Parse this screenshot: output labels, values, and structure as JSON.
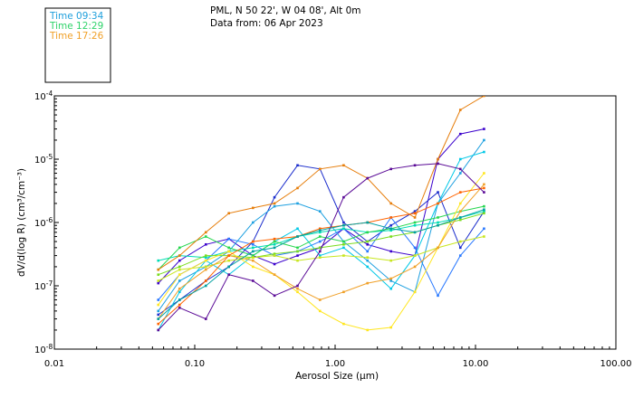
{
  "chart_data": {
    "type": "line",
    "title": "PML, N 50 22', W 04 08', Alt 0m",
    "subtitle": "Data from: 06 Apr 2023",
    "xlabel": "Aerosol Size (µm)",
    "ylabel": "dV/d(log R) (cm³/cm⁻³)",
    "x_scale": "log",
    "y_scale": "log",
    "xlim": [
      0.01,
      100
    ],
    "ylim": [
      1e-08,
      0.0001
    ],
    "x_ticks": [
      {
        "value": 0.01,
        "label": "0.01"
      },
      {
        "value": 0.1,
        "label": "0.10"
      },
      {
        "value": 1,
        "label": "1.00"
      },
      {
        "value": 10,
        "label": "10.00"
      },
      {
        "value": 100,
        "label": "100.00"
      }
    ],
    "y_ticks": [
      {
        "value": 1e-08,
        "mant": "10",
        "exp": "-8"
      },
      {
        "value": 1e-07,
        "mant": "10",
        "exp": "-7"
      },
      {
        "value": 1e-06,
        "mant": "10",
        "exp": "-6"
      },
      {
        "value": 1e-05,
        "mant": "10",
        "exp": "-5"
      },
      {
        "value": 0.0001,
        "mant": "10",
        "exp": "-4"
      }
    ],
    "legend_position": "top-left (outside plot)",
    "legend": [
      {
        "label": "Time 09:34",
        "color": "#1e9fdc"
      },
      {
        "label": "Time 12:29",
        "color": "#2fd36a"
      },
      {
        "label": "Time 17:26",
        "color": "#f0a028"
      }
    ],
    "x": [
      0.055,
      0.078,
      0.12,
      0.175,
      0.26,
      0.37,
      0.54,
      0.78,
      1.15,
      1.7,
      2.5,
      3.7,
      5.4,
      7.8,
      11.5
    ],
    "series": [
      {
        "color": "#3a00cc",
        "values": [
          1.1e-07,
          2.5e-07,
          4.5e-07,
          5.5e-07,
          3e-07,
          2.2e-07,
          3e-07,
          4e-07,
          8e-07,
          4.5e-07,
          3.5e-07,
          3e-07,
          1e-05,
          2.5e-05,
          3e-05
        ]
      },
      {
        "color": "#1a2ccc",
        "values": [
          3.5e-08,
          6e-08,
          1.2e-07,
          2e-07,
          5e-07,
          2.5e-06,
          8e-06,
          7e-06,
          1e-06,
          5e-07,
          9e-07,
          1.5e-06,
          3e-06,
          4e-07,
          1.5e-06
        ]
      },
      {
        "color": "#2878ff",
        "values": [
          6e-08,
          1.5e-07,
          2.5e-07,
          5.5e-07,
          4.5e-07,
          3e-07,
          3.5e-07,
          5e-07,
          8e-07,
          3.5e-07,
          1.2e-06,
          4e-07,
          7e-08,
          3e-07,
          8e-07
        ]
      },
      {
        "color": "#1ea0e0",
        "values": [
          4e-08,
          1.2e-07,
          2e-07,
          3.5e-07,
          1e-06,
          1.8e-06,
          2e-06,
          1.5e-06,
          5e-07,
          2.5e-07,
          1.2e-07,
          8e-08,
          2e-06,
          6e-06,
          2e-05
        ]
      },
      {
        "color": "#00c8e6",
        "values": [
          2e-08,
          8e-08,
          2.5e-07,
          1.5e-07,
          3e-07,
          5e-07,
          8e-07,
          3e-07,
          4e-07,
          2e-07,
          9e-08,
          3e-07,
          2e-06,
          1e-05,
          1.3e-05
        ]
      },
      {
        "color": "#00dcb4",
        "values": [
          2.5e-07,
          3e-07,
          2.8e-07,
          3.5e-07,
          4e-07,
          4.5e-07,
          6e-07,
          7e-07,
          8e-07,
          7e-07,
          7.5e-07,
          9e-07,
          1e-06,
          1.2e-06,
          1.5e-06
        ]
      },
      {
        "color": "#26d74e",
        "values": [
          1.8e-07,
          4e-07,
          6e-07,
          4e-07,
          3e-07,
          5e-07,
          4e-07,
          6e-07,
          5e-07,
          7e-07,
          8e-07,
          1e-06,
          1.2e-06,
          1.5e-06,
          1.8e-06
        ]
      },
      {
        "color": "#7adc1e",
        "values": [
          1.5e-07,
          2e-07,
          3e-07,
          3e-07,
          2.8e-07,
          3.2e-07,
          3.5e-07,
          4e-07,
          4.5e-07,
          5e-07,
          6e-07,
          7e-07,
          9e-07,
          1.1e-06,
          1.4e-06
        ]
      },
      {
        "color": "#c8e61e",
        "values": [
          1.2e-07,
          1.8e-07,
          2e-07,
          2.5e-07,
          2.8e-07,
          3e-07,
          2.5e-07,
          2.8e-07,
          3e-07,
          2.8e-07,
          2.5e-07,
          3e-07,
          4e-07,
          5e-07,
          6e-07
        ]
      },
      {
        "color": "#ffe61e",
        "values": [
          5e-08,
          1.5e-07,
          2.5e-07,
          3.5e-07,
          2e-07,
          1.5e-07,
          8e-08,
          4e-08,
          2.5e-08,
          2e-08,
          2.2e-08,
          8e-08,
          4e-07,
          2e-06,
          6e-06
        ]
      },
      {
        "color": "#f0a028",
        "values": [
          3e-08,
          9e-08,
          1.8e-07,
          3e-07,
          2.5e-07,
          1.5e-07,
          9e-08,
          6e-08,
          8e-08,
          1.1e-07,
          1.3e-07,
          2e-07,
          4e-07,
          1.5e-06,
          4e-06
        ]
      },
      {
        "color": "#e67d0a",
        "values": [
          1.8e-07,
          3e-07,
          7e-07,
          1.4e-06,
          1.7e-06,
          2e-06,
          3.5e-06,
          7e-06,
          8e-06,
          5e-06,
          2e-06,
          1.2e-06,
          1e-05,
          6e-05,
          0.0001
        ]
      },
      {
        "color": "#ff6400",
        "values": [
          2.5e-08,
          5e-08,
          1.2e-07,
          3e-07,
          5e-07,
          5.5e-07,
          6e-07,
          8e-07,
          9e-07,
          1e-06,
          1.2e-06,
          1.4e-06,
          2e-06,
          3e-06,
          3.5e-06
        ]
      },
      {
        "color": "#5a0a96",
        "values": [
          2e-08,
          4.5e-08,
          3e-08,
          1.5e-07,
          1.2e-07,
          7e-08,
          1e-07,
          3.5e-07,
          2.5e-06,
          5e-06,
          7e-06,
          8e-06,
          8.5e-06,
          7e-06,
          3e-06
        ]
      },
      {
        "color": "#00a0a0",
        "values": [
          3e-08,
          6e-08,
          1e-07,
          2e-07,
          3.5e-07,
          4e-07,
          6e-07,
          7.5e-07,
          9e-07,
          1e-06,
          8e-07,
          7e-07,
          9e-07,
          1.2e-06,
          1.6e-06
        ]
      }
    ]
  }
}
